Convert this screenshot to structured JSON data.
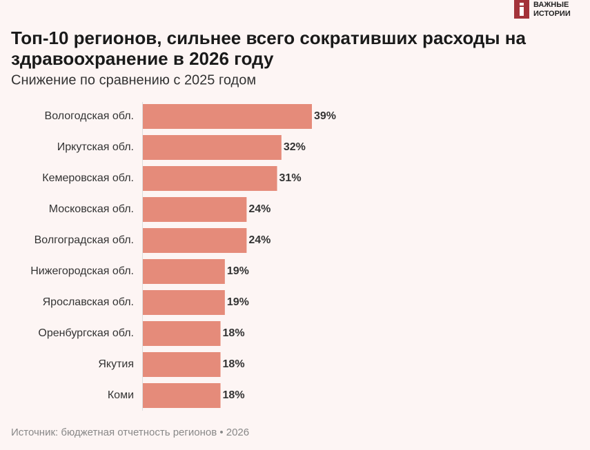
{
  "chart_data": {
    "type": "bar",
    "title": "Топ-10 регионов, сильнее всего сокративших расходы на здравоохранение в 2026 году",
    "subtitle": "Снижение по сравнению с 2025 годом",
    "categories": [
      "Вологодская обл.",
      "Иркутская обл.",
      "Кемеровская обл.",
      "Московская обл.",
      "Волгоградская обл.",
      "Нижегородская обл.",
      "Ярославская обл.",
      "Оренбургская обл.",
      "Якутия",
      "Коми"
    ],
    "values": [
      39,
      32,
      31,
      24,
      24,
      19,
      19,
      18,
      18,
      18
    ],
    "value_labels": [
      "39%",
      "32%",
      "31%",
      "24%",
      "24%",
      "19%",
      "19%",
      "18%",
      "18%",
      "18%"
    ],
    "color": "#e58b7a",
    "source": "Источник: бюджетная отчетность регионов • 2026",
    "logo": [
      "ВАЖНЫЕ",
      "ИСТОРИИ"
    ]
  }
}
